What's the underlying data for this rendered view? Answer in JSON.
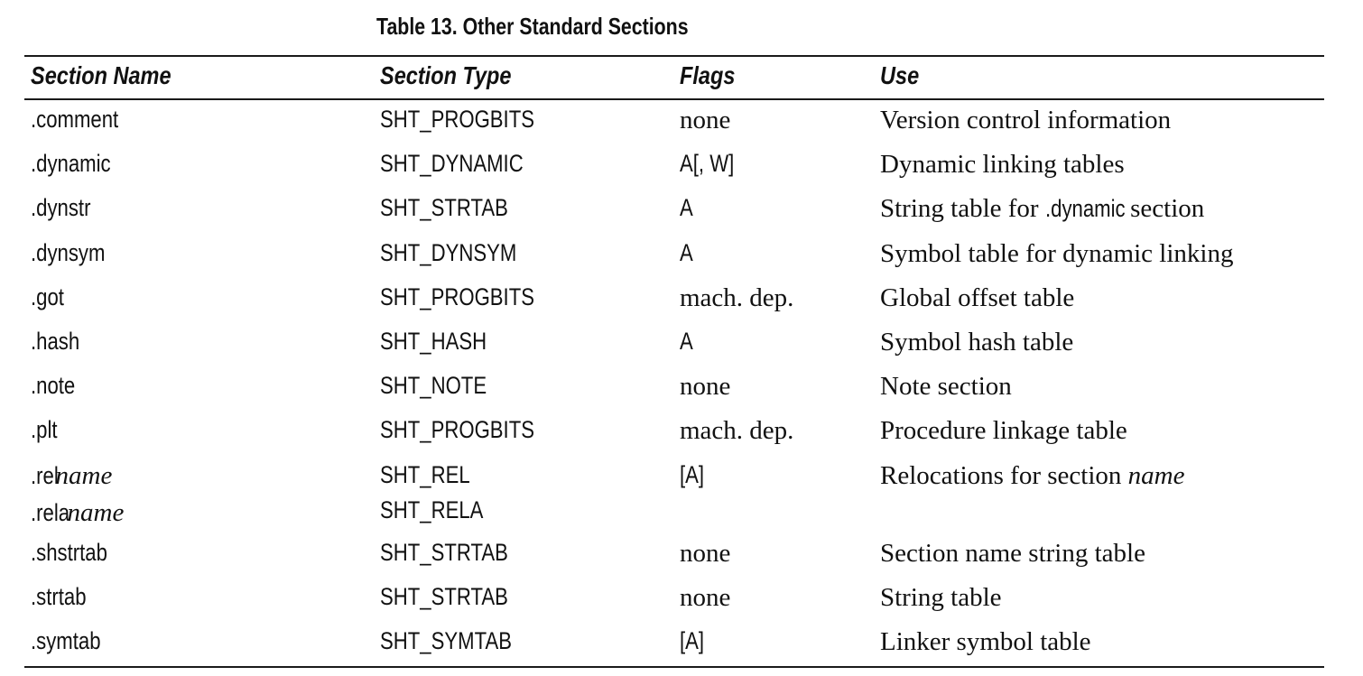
{
  "caption": "Table 13.  Other Standard Sections",
  "columns": [
    "Section Name",
    "Section Type",
    "Flags",
    "Use"
  ],
  "rows": [
    {
      "name": ".comment",
      "type": "SHT_PROGBITS",
      "flags": "none",
      "flags_style": "serif",
      "use": "Version control information"
    },
    {
      "name": ".dynamic",
      "type": "SHT_DYNAMIC",
      "flags": "A[, W]",
      "flags_style": "cond",
      "use": "Dynamic linking tables"
    },
    {
      "name": ".dynstr",
      "type": "SHT_STRTAB",
      "flags": "A",
      "flags_style": "cond",
      "use_pre": "String table for ",
      "use_code": ".dynamic",
      "use_post": " section"
    },
    {
      "name": ".dynsym",
      "type": "SHT_DYNSYM",
      "flags": "A",
      "flags_style": "cond",
      "use": "Symbol table for dynamic linking"
    },
    {
      "name": ".got",
      "type": "SHT_PROGBITS",
      "flags": "mach. dep.",
      "flags_style": "serif",
      "use": "Global offset table"
    },
    {
      "name": ".hash",
      "type": "SHT_HASH",
      "flags": "A",
      "flags_style": "cond",
      "use": "Symbol hash table"
    },
    {
      "name": ".note",
      "type": "SHT_NOTE",
      "flags": "none",
      "flags_style": "serif",
      "use": "Note section"
    },
    {
      "name": ".plt",
      "type": "SHT_PROGBITS",
      "flags": "mach. dep.",
      "flags_style": "serif",
      "use": "Procedure linkage table"
    },
    {
      "name_pre": ".rel",
      "name_ital": "name",
      "name2_pre": ".rela",
      "name2_ital": "name",
      "type": "SHT_REL",
      "type2": "SHT_RELA",
      "flags": "[A]",
      "flags_style": "cond",
      "use_pre": "Relocations for section ",
      "use_ital": "name"
    },
    {
      "name": ".shstrtab",
      "type": "SHT_STRTAB",
      "flags": "none",
      "flags_style": "serif",
      "use": "Section name string table"
    },
    {
      "name": ".strtab",
      "type": "SHT_STRTAB",
      "flags": "none",
      "flags_style": "serif",
      "use": "String table"
    },
    {
      "name": ".symtab",
      "type": "SHT_SYMTAB",
      "flags": "[A]",
      "flags_style": "cond",
      "use": "Linker symbol table"
    }
  ]
}
